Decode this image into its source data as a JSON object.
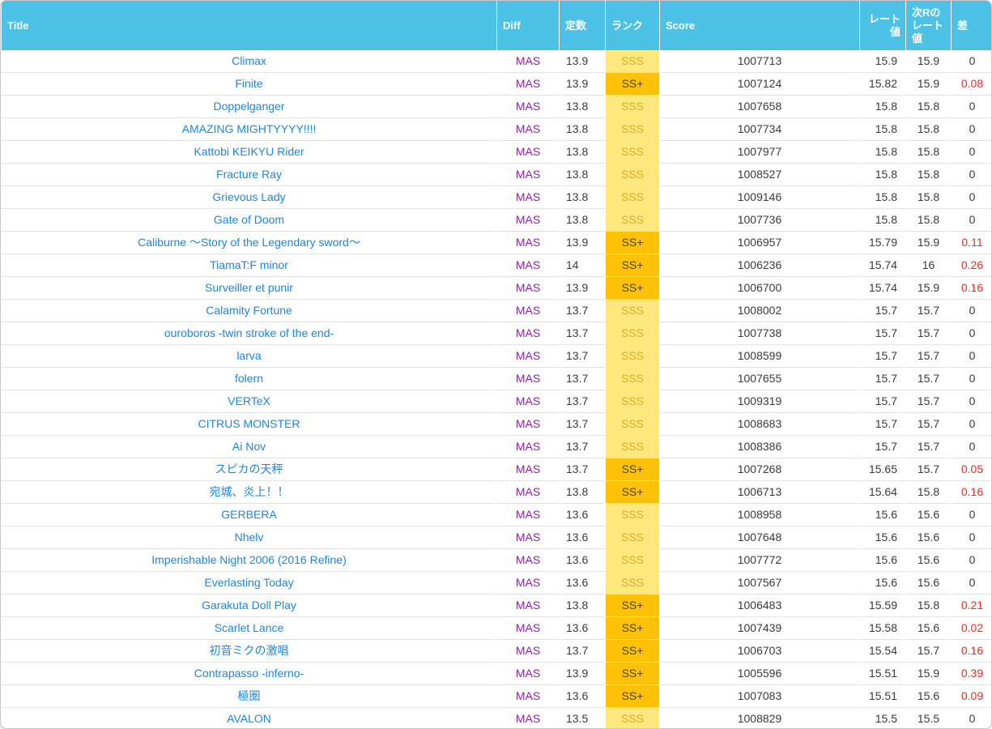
{
  "colors": {
    "header_bg": "#4cc3e6",
    "title_link": "#1d87e4",
    "diff_mas": "#8e24aa",
    "rank_sss_bg": "#ffe87d",
    "rank_sss_text": "#e2ae27",
    "rank_ssp_bg": "#fdc107",
    "rank_ssp_text": "#454545",
    "gap_red": "#f22b2b",
    "text": "#3b3b3b"
  },
  "table": {
    "columns": [
      {
        "key": "title",
        "label": "Title"
      },
      {
        "key": "diff",
        "label": "Diff"
      },
      {
        "key": "const",
        "label": "定数"
      },
      {
        "key": "rank",
        "label": "ランク"
      },
      {
        "key": "score",
        "label": "Score"
      },
      {
        "key": "rate",
        "label": "レート値"
      },
      {
        "key": "next_rate",
        "label": "次Rのレート値"
      },
      {
        "key": "gap",
        "label": "差"
      }
    ],
    "rows": [
      {
        "title": "Climax",
        "diff": "MAS",
        "const": "13.9",
        "rank": "SSS",
        "score": "1007713",
        "rate": "15.9",
        "next_rate": "15.9",
        "gap": "0"
      },
      {
        "title": "Finite",
        "diff": "MAS",
        "const": "13.9",
        "rank": "SS+",
        "score": "1007124",
        "rate": "15.82",
        "next_rate": "15.9",
        "gap": "0.08"
      },
      {
        "title": "Doppelganger",
        "diff": "MAS",
        "const": "13.8",
        "rank": "SSS",
        "score": "1007658",
        "rate": "15.8",
        "next_rate": "15.8",
        "gap": "0"
      },
      {
        "title": "AMAZING MIGHTYYYY!!!!",
        "diff": "MAS",
        "const": "13.8",
        "rank": "SSS",
        "score": "1007734",
        "rate": "15.8",
        "next_rate": "15.8",
        "gap": "0"
      },
      {
        "title": "Kattobi KEIKYU Rider",
        "diff": "MAS",
        "const": "13.8",
        "rank": "SSS",
        "score": "1007977",
        "rate": "15.8",
        "next_rate": "15.8",
        "gap": "0"
      },
      {
        "title": "Fracture Ray",
        "diff": "MAS",
        "const": "13.8",
        "rank": "SSS",
        "score": "1008527",
        "rate": "15.8",
        "next_rate": "15.8",
        "gap": "0"
      },
      {
        "title": "Grievous Lady",
        "diff": "MAS",
        "const": "13.8",
        "rank": "SSS",
        "score": "1009146",
        "rate": "15.8",
        "next_rate": "15.8",
        "gap": "0"
      },
      {
        "title": "Gate of Doom",
        "diff": "MAS",
        "const": "13.8",
        "rank": "SSS",
        "score": "1007736",
        "rate": "15.8",
        "next_rate": "15.8",
        "gap": "0"
      },
      {
        "title": "Caliburne ～Story of the Legendary sword～",
        "diff": "MAS",
        "const": "13.9",
        "rank": "SS+",
        "score": "1006957",
        "rate": "15.79",
        "next_rate": "15.9",
        "gap": "0.11"
      },
      {
        "title": "TiamaT:F minor",
        "diff": "MAS",
        "const": "14",
        "rank": "SS+",
        "score": "1006236",
        "rate": "15.74",
        "next_rate": "16",
        "gap": "0.26"
      },
      {
        "title": "Surveiller et punir",
        "diff": "MAS",
        "const": "13.9",
        "rank": "SS+",
        "score": "1006700",
        "rate": "15.74",
        "next_rate": "15.9",
        "gap": "0.16"
      },
      {
        "title": "Calamity Fortune",
        "diff": "MAS",
        "const": "13.7",
        "rank": "SSS",
        "score": "1008002",
        "rate": "15.7",
        "next_rate": "15.7",
        "gap": "0"
      },
      {
        "title": "ouroboros -twin stroke of the end-",
        "diff": "MAS",
        "const": "13.7",
        "rank": "SSS",
        "score": "1007738",
        "rate": "15.7",
        "next_rate": "15.7",
        "gap": "0"
      },
      {
        "title": "larva",
        "diff": "MAS",
        "const": "13.7",
        "rank": "SSS",
        "score": "1008599",
        "rate": "15.7",
        "next_rate": "15.7",
        "gap": "0"
      },
      {
        "title": "folern",
        "diff": "MAS",
        "const": "13.7",
        "rank": "SSS",
        "score": "1007655",
        "rate": "15.7",
        "next_rate": "15.7",
        "gap": "0"
      },
      {
        "title": "VERTeX",
        "diff": "MAS",
        "const": "13.7",
        "rank": "SSS",
        "score": "1009319",
        "rate": "15.7",
        "next_rate": "15.7",
        "gap": "0"
      },
      {
        "title": "CITRUS MONSTER",
        "diff": "MAS",
        "const": "13.7",
        "rank": "SSS",
        "score": "1008683",
        "rate": "15.7",
        "next_rate": "15.7",
        "gap": "0"
      },
      {
        "title": "Ai Nov",
        "diff": "MAS",
        "const": "13.7",
        "rank": "SSS",
        "score": "1008386",
        "rate": "15.7",
        "next_rate": "15.7",
        "gap": "0"
      },
      {
        "title": "スピカの天秤",
        "diff": "MAS",
        "const": "13.7",
        "rank": "SS+",
        "score": "1007268",
        "rate": "15.65",
        "next_rate": "15.7",
        "gap": "0.05"
      },
      {
        "title": "宛城、炎上！！",
        "diff": "MAS",
        "const": "13.8",
        "rank": "SS+",
        "score": "1006713",
        "rate": "15.64",
        "next_rate": "15.8",
        "gap": "0.16"
      },
      {
        "title": "GERBERA",
        "diff": "MAS",
        "const": "13.6",
        "rank": "SSS",
        "score": "1008958",
        "rate": "15.6",
        "next_rate": "15.6",
        "gap": "0"
      },
      {
        "title": "Nhelv",
        "diff": "MAS",
        "const": "13.6",
        "rank": "SSS",
        "score": "1007648",
        "rate": "15.6",
        "next_rate": "15.6",
        "gap": "0"
      },
      {
        "title": "Imperishable Night 2006 (2016 Refine)",
        "diff": "MAS",
        "const": "13.6",
        "rank": "SSS",
        "score": "1007772",
        "rate": "15.6",
        "next_rate": "15.6",
        "gap": "0"
      },
      {
        "title": "Everlasting Today",
        "diff": "MAS",
        "const": "13.6",
        "rank": "SSS",
        "score": "1007567",
        "rate": "15.6",
        "next_rate": "15.6",
        "gap": "0"
      },
      {
        "title": "Garakuta Doll Play",
        "diff": "MAS",
        "const": "13.8",
        "rank": "SS+",
        "score": "1006483",
        "rate": "15.59",
        "next_rate": "15.8",
        "gap": "0.21"
      },
      {
        "title": "Scarlet Lance",
        "diff": "MAS",
        "const": "13.6",
        "rank": "SS+",
        "score": "1007439",
        "rate": "15.58",
        "next_rate": "15.6",
        "gap": "0.02"
      },
      {
        "title": "初音ミクの激唱",
        "diff": "MAS",
        "const": "13.7",
        "rank": "SS+",
        "score": "1006703",
        "rate": "15.54",
        "next_rate": "15.7",
        "gap": "0.16"
      },
      {
        "title": "Contrapasso -inferno-",
        "diff": "MAS",
        "const": "13.9",
        "rank": "SS+",
        "score": "1005596",
        "rate": "15.51",
        "next_rate": "15.9",
        "gap": "0.39"
      },
      {
        "title": "極圏",
        "diff": "MAS",
        "const": "13.6",
        "rank": "SS+",
        "score": "1007083",
        "rate": "15.51",
        "next_rate": "15.6",
        "gap": "0.09"
      },
      {
        "title": "AVALON",
        "diff": "MAS",
        "const": "13.5",
        "rank": "SSS",
        "score": "1008829",
        "rate": "15.5",
        "next_rate": "15.5",
        "gap": "0"
      }
    ]
  }
}
